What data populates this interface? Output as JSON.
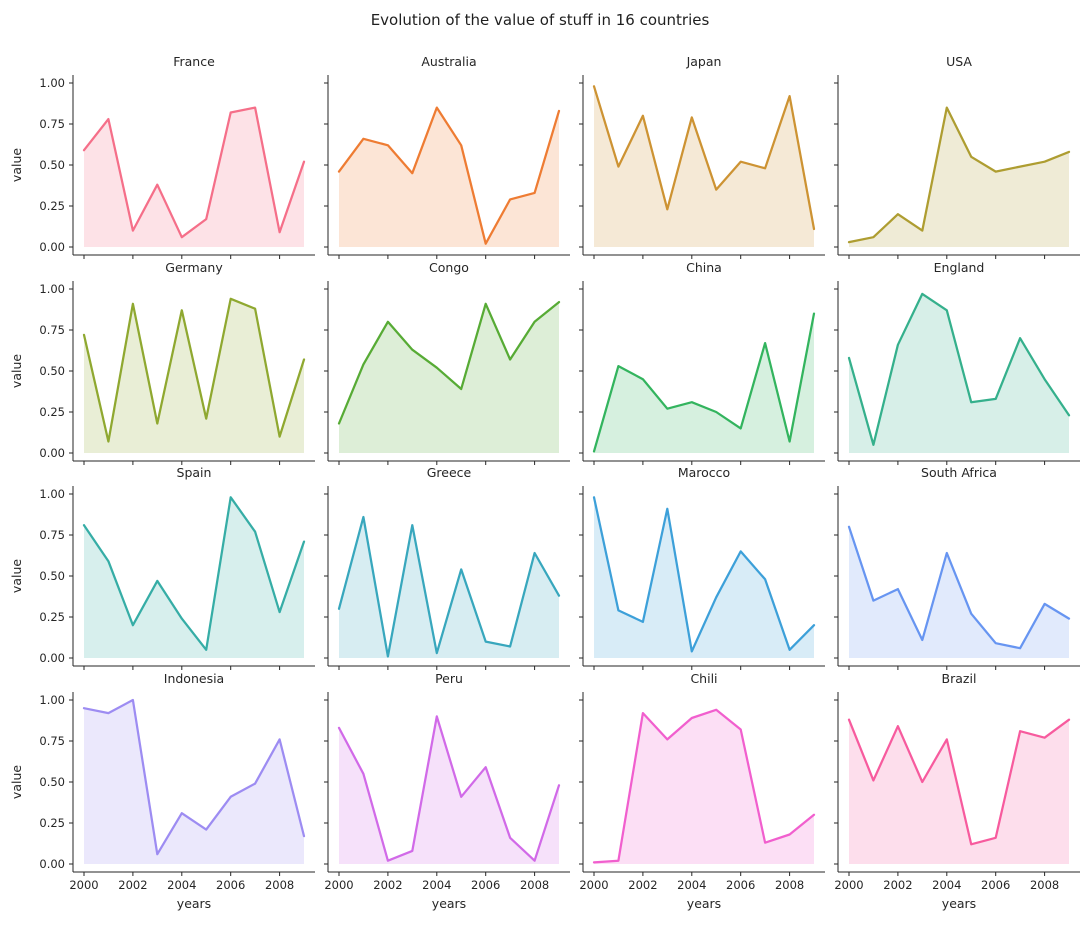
{
  "figure": {
    "background": "#ffffff",
    "text_color": "#262626",
    "spine_color": "#262626"
  },
  "chart_data": {
    "type": "area",
    "title": "Evolution of the value of stuff in 16 countries",
    "layout": "4x4 small multiples",
    "xlabel": "years",
    "ylabel": "value",
    "x": [
      2000,
      2001,
      2002,
      2003,
      2004,
      2005,
      2006,
      2007,
      2008,
      2009
    ],
    "xtick_labels": [
      "2000",
      "2002",
      "2004",
      "2006",
      "2008"
    ],
    "xtick_indices": [
      0,
      2,
      4,
      6,
      8
    ],
    "ytick_labels": [
      "0.00",
      "0.25",
      "0.50",
      "0.75",
      "1.00"
    ],
    "ytick_values": [
      0,
      0.25,
      0.5,
      0.75,
      1.0
    ],
    "ylim": [
      0,
      1
    ],
    "grid": false,
    "fill_alpha": 0.2,
    "series": [
      {
        "name": "France",
        "color": "#f56f89",
        "values": [
          0.59,
          0.78,
          0.1,
          0.38,
          0.06,
          0.17,
          0.82,
          0.85,
          0.09,
          0.52
        ]
      },
      {
        "name": "Australia",
        "color": "#ee7c33",
        "values": [
          0.46,
          0.66,
          0.62,
          0.45,
          0.85,
          0.62,
          0.02,
          0.29,
          0.33,
          0.83
        ]
      },
      {
        "name": "Japan",
        "color": "#cd9333",
        "values": [
          0.98,
          0.49,
          0.8,
          0.23,
          0.79,
          0.35,
          0.52,
          0.48,
          0.92,
          0.11
        ]
      },
      {
        "name": "USA",
        "color": "#ae9d31",
        "values": [
          0.03,
          0.06,
          0.2,
          0.1,
          0.85,
          0.55,
          0.46,
          0.49,
          0.52,
          0.58
        ]
      },
      {
        "name": "Germany",
        "color": "#8fa830",
        "values": [
          0.72,
          0.07,
          0.91,
          0.18,
          0.87,
          0.21,
          0.94,
          0.88,
          0.1,
          0.57
        ]
      },
      {
        "name": "Congo",
        "color": "#57ab35",
        "values": [
          0.18,
          0.54,
          0.8,
          0.63,
          0.52,
          0.39,
          0.91,
          0.57,
          0.8,
          0.92
        ]
      },
      {
        "name": "China",
        "color": "#33b45e",
        "values": [
          0.01,
          0.53,
          0.45,
          0.27,
          0.31,
          0.25,
          0.15,
          0.67,
          0.07,
          0.85
        ]
      },
      {
        "name": "England",
        "color": "#35b08c",
        "values": [
          0.58,
          0.05,
          0.66,
          0.97,
          0.87,
          0.31,
          0.33,
          0.7,
          0.45,
          0.23
        ]
      },
      {
        "name": "Spain",
        "color": "#36ada6",
        "values": [
          0.81,
          0.59,
          0.2,
          0.47,
          0.24,
          0.05,
          0.98,
          0.77,
          0.28,
          0.71
        ]
      },
      {
        "name": "Greece",
        "color": "#38a7bd",
        "values": [
          0.3,
          0.86,
          0.01,
          0.81,
          0.03,
          0.54,
          0.1,
          0.07,
          0.64,
          0.38
        ]
      },
      {
        "name": "Marocco",
        "color": "#3da0d9",
        "values": [
          0.98,
          0.29,
          0.22,
          0.91,
          0.04,
          0.37,
          0.65,
          0.48,
          0.05,
          0.2
        ]
      },
      {
        "name": "South Africa",
        "color": "#6795f1",
        "values": [
          0.8,
          0.35,
          0.42,
          0.11,
          0.64,
          0.27,
          0.09,
          0.06,
          0.33,
          0.24
        ]
      },
      {
        "name": "Indonesia",
        "color": "#9d8cf2",
        "values": [
          0.95,
          0.92,
          1.0,
          0.06,
          0.31,
          0.21,
          0.41,
          0.49,
          0.76,
          0.17
        ]
      },
      {
        "name": "Peru",
        "color": "#d16ae8",
        "values": [
          0.83,
          0.55,
          0.02,
          0.08,
          0.9,
          0.41,
          0.59,
          0.16,
          0.02,
          0.48
        ]
      },
      {
        "name": "Chili",
        "color": "#f15fce",
        "values": [
          0.01,
          0.02,
          0.92,
          0.76,
          0.89,
          0.94,
          0.82,
          0.13,
          0.18,
          0.3
        ]
      },
      {
        "name": "Brazil",
        "color": "#f75b9e",
        "values": [
          0.88,
          0.51,
          0.84,
          0.5,
          0.76,
          0.12,
          0.16,
          0.81,
          0.77,
          0.88
        ]
      }
    ]
  }
}
